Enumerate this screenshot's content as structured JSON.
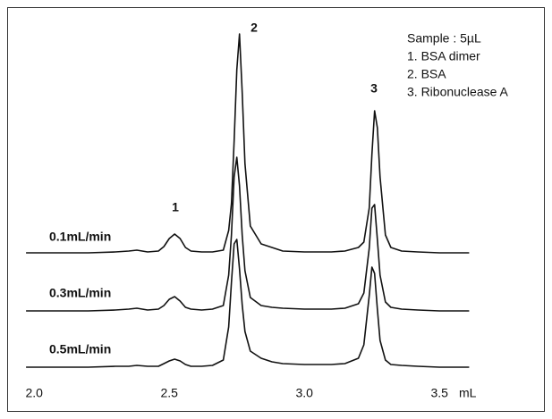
{
  "chart_data": {
    "type": "line",
    "x_label": "mL",
    "xlim": [
      1.9,
      3.89
    ],
    "xticks": [
      {
        "value": 2.0,
        "label": "2.0"
      },
      2.5,
      {
        "value": 3.0,
        "label": "3.0"
      },
      3.5
    ],
    "peak_labels": [
      "1",
      "2",
      "3"
    ],
    "legend_lines": [
      "Sample : 5µL",
      "1. BSA dimer",
      "2. BSA",
      "3. Ribonuclease A"
    ],
    "x": [
      1.97,
      2.1,
      2.2,
      2.3,
      2.35,
      2.38,
      2.42,
      2.46,
      2.48,
      2.5,
      2.52,
      2.54,
      2.56,
      2.58,
      2.62,
      2.66,
      2.7,
      2.72,
      2.73,
      2.74,
      2.75,
      2.76,
      2.77,
      2.78,
      2.8,
      2.84,
      2.88,
      2.92,
      3.0,
      3.1,
      3.15,
      3.2,
      3.22,
      3.24,
      3.25,
      3.26,
      3.27,
      3.28,
      3.3,
      3.32,
      3.36,
      3.42,
      3.5,
      3.61
    ],
    "series": [
      {
        "name": "0.1mL/min",
        "color": "#111111",
        "values": [
          0,
          0,
          0,
          1,
          2,
          3,
          1,
          2,
          7,
          16,
          21,
          16,
          6,
          2,
          1,
          1,
          3,
          25,
          55,
          125,
          205,
          245,
          180,
          100,
          30,
          10,
          6,
          2,
          1,
          1,
          2,
          6,
          12,
          50,
          110,
          159,
          140,
          85,
          20,
          6,
          2,
          1,
          0,
          0
        ]
      },
      {
        "name": "0.3mL/min",
        "color": "#111111",
        "values": [
          0,
          0,
          0,
          1,
          2,
          3,
          1,
          2,
          6,
          13,
          16,
          11,
          4,
          2,
          1,
          2,
          6,
          40,
          85,
          150,
          172,
          140,
          85,
          45,
          15,
          6,
          4,
          3,
          2,
          2,
          3,
          8,
          20,
          70,
          115,
          119,
          80,
          40,
          10,
          4,
          2,
          1,
          0,
          0
        ]
      },
      {
        "name": "0.5mL/min",
        "color": "#111111",
        "values": [
          0,
          0,
          0,
          1,
          1,
          2,
          1,
          1,
          4,
          7,
          9,
          7,
          3,
          1,
          1,
          2,
          8,
          45,
          95,
          138,
          143,
          110,
          70,
          40,
          18,
          10,
          6,
          4,
          3,
          3,
          4,
          10,
          25,
          80,
          112,
          105,
          65,
          30,
          8,
          3,
          2,
          1,
          0,
          0
        ]
      }
    ]
  }
}
